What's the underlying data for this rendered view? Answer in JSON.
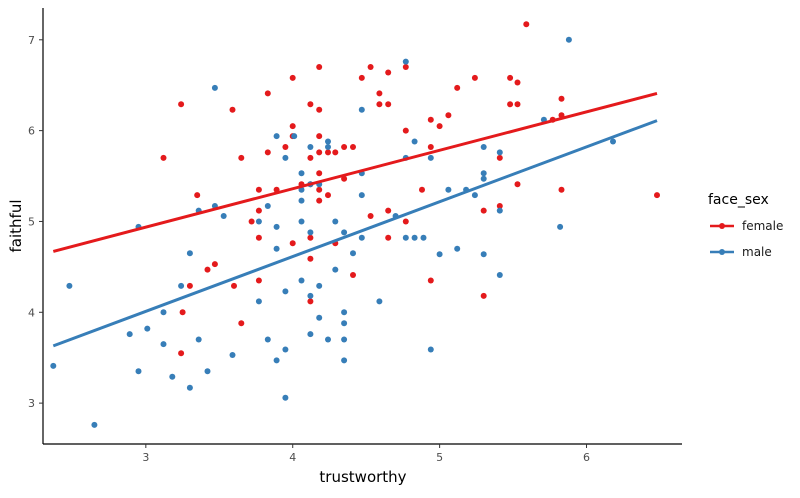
{
  "chart_data": {
    "type": "scatter",
    "xlabel": "trustworthy",
    "ylabel": "faithful",
    "xlim": [
      2.3,
      6.65
    ],
    "ylim": [
      2.55,
      7.35
    ],
    "x_ticks": [
      "3",
      "4",
      "5",
      "6"
    ],
    "y_ticks": [
      "3",
      "4",
      "5",
      "6",
      "7"
    ],
    "grid": false,
    "legend": {
      "title": "face_sex",
      "position": "right"
    },
    "series": [
      {
        "name": "female",
        "color": "#e41a1c",
        "trend_line": {
          "x": [
            2.37,
            6.48
          ],
          "y": [
            4.67,
            6.41
          ]
        },
        "points": [
          [
            3.12,
            5.7
          ],
          [
            3.24,
            6.29
          ],
          [
            3.35,
            5.29
          ],
          [
            3.42,
            4.47
          ],
          [
            3.47,
            4.53
          ],
          [
            3.3,
            4.29
          ],
          [
            3.25,
            4.0
          ],
          [
            3.24,
            3.55
          ],
          [
            3.59,
            6.23
          ],
          [
            3.6,
            4.29
          ],
          [
            3.65,
            5.7
          ],
          [
            3.65,
            3.88
          ],
          [
            3.72,
            5.0
          ],
          [
            3.77,
            5.35
          ],
          [
            3.77,
            5.12
          ],
          [
            3.77,
            4.82
          ],
          [
            3.77,
            4.35
          ],
          [
            3.83,
            6.41
          ],
          [
            3.83,
            5.76
          ],
          [
            3.89,
            5.35
          ],
          [
            3.95,
            5.82
          ],
          [
            4.0,
            6.58
          ],
          [
            4.0,
            6.05
          ],
          [
            4.0,
            5.94
          ],
          [
            4.0,
            4.76
          ],
          [
            4.06,
            5.41
          ],
          [
            4.12,
            6.29
          ],
          [
            4.12,
            5.7
          ],
          [
            4.12,
            5.41
          ],
          [
            4.12,
            4.82
          ],
          [
            4.12,
            4.59
          ],
          [
            4.12,
            4.12
          ],
          [
            4.18,
            6.7
          ],
          [
            4.18,
            6.23
          ],
          [
            4.18,
            5.94
          ],
          [
            4.18,
            5.76
          ],
          [
            4.18,
            5.53
          ],
          [
            4.18,
            5.35
          ],
          [
            4.18,
            5.23
          ],
          [
            4.24,
            5.76
          ],
          [
            4.24,
            5.29
          ],
          [
            4.29,
            5.76
          ],
          [
            4.29,
            4.76
          ],
          [
            4.35,
            5.82
          ],
          [
            4.35,
            5.47
          ],
          [
            4.41,
            5.82
          ],
          [
            4.41,
            4.41
          ],
          [
            4.47,
            6.58
          ],
          [
            4.53,
            6.7
          ],
          [
            4.53,
            5.06
          ],
          [
            4.59,
            6.41
          ],
          [
            4.59,
            6.29
          ],
          [
            4.65,
            6.64
          ],
          [
            4.65,
            6.29
          ],
          [
            4.65,
            5.12
          ],
          [
            4.65,
            4.82
          ],
          [
            4.77,
            6.7
          ],
          [
            4.77,
            6.0
          ],
          [
            4.77,
            5.0
          ],
          [
            4.88,
            5.35
          ],
          [
            4.94,
            6.12
          ],
          [
            4.94,
            5.82
          ],
          [
            4.94,
            4.35
          ],
          [
            5.0,
            6.05
          ],
          [
            5.06,
            6.17
          ],
          [
            5.12,
            6.47
          ],
          [
            5.24,
            6.58
          ],
          [
            5.3,
            5.12
          ],
          [
            5.3,
            4.18
          ],
          [
            5.41,
            5.7
          ],
          [
            5.41,
            5.17
          ],
          [
            5.48,
            6.58
          ],
          [
            5.48,
            6.29
          ],
          [
            5.53,
            6.53
          ],
          [
            5.53,
            6.29
          ],
          [
            5.53,
            5.41
          ],
          [
            5.59,
            7.17
          ],
          [
            5.77,
            6.12
          ],
          [
            5.83,
            6.35
          ],
          [
            5.83,
            6.17
          ],
          [
            5.83,
            5.35
          ],
          [
            6.48,
            5.29
          ]
        ]
      },
      {
        "name": "male",
        "color": "#377eb8",
        "trend_line": {
          "x": [
            2.37,
            6.48
          ],
          "y": [
            3.63,
            6.11
          ]
        },
        "points": [
          [
            2.37,
            3.41
          ],
          [
            2.48,
            4.29
          ],
          [
            2.65,
            2.76
          ],
          [
            2.89,
            3.76
          ],
          [
            2.95,
            4.94
          ],
          [
            2.95,
            3.35
          ],
          [
            3.01,
            3.82
          ],
          [
            3.12,
            4.0
          ],
          [
            3.12,
            3.65
          ],
          [
            3.18,
            3.29
          ],
          [
            3.24,
            4.29
          ],
          [
            3.3,
            4.65
          ],
          [
            3.3,
            3.17
          ],
          [
            3.36,
            5.12
          ],
          [
            3.36,
            3.7
          ],
          [
            3.42,
            3.35
          ],
          [
            3.47,
            6.47
          ],
          [
            3.47,
            5.17
          ],
          [
            3.53,
            5.06
          ],
          [
            3.59,
            3.53
          ],
          [
            3.77,
            5.0
          ],
          [
            3.77,
            4.12
          ],
          [
            3.83,
            5.17
          ],
          [
            3.83,
            3.7
          ],
          [
            3.89,
            5.94
          ],
          [
            3.89,
            4.94
          ],
          [
            3.89,
            4.7
          ],
          [
            3.89,
            3.47
          ],
          [
            3.95,
            5.7
          ],
          [
            3.95,
            4.23
          ],
          [
            3.95,
            3.59
          ],
          [
            3.95,
            3.06
          ],
          [
            4.01,
            5.94
          ],
          [
            4.06,
            5.53
          ],
          [
            4.06,
            5.35
          ],
          [
            4.06,
            5.23
          ],
          [
            4.06,
            5.0
          ],
          [
            4.06,
            4.35
          ],
          [
            4.12,
            5.82
          ],
          [
            4.12,
            5.41
          ],
          [
            4.12,
            4.88
          ],
          [
            4.12,
            4.18
          ],
          [
            4.12,
            3.76
          ],
          [
            4.18,
            5.41
          ],
          [
            4.18,
            4.29
          ],
          [
            4.18,
            3.94
          ],
          [
            4.24,
            5.88
          ],
          [
            4.24,
            5.82
          ],
          [
            4.24,
            3.7
          ],
          [
            4.29,
            5.0
          ],
          [
            4.29,
            4.47
          ],
          [
            4.35,
            4.88
          ],
          [
            4.35,
            4.0
          ],
          [
            4.35,
            3.88
          ],
          [
            4.35,
            3.7
          ],
          [
            4.35,
            3.47
          ],
          [
            4.41,
            4.65
          ],
          [
            4.47,
            6.23
          ],
          [
            4.47,
            5.53
          ],
          [
            4.47,
            5.29
          ],
          [
            4.47,
            4.82
          ],
          [
            4.59,
            4.12
          ],
          [
            4.7,
            5.06
          ],
          [
            4.77,
            6.76
          ],
          [
            4.77,
            5.7
          ],
          [
            4.77,
            4.82
          ],
          [
            4.83,
            5.88
          ],
          [
            4.83,
            4.82
          ],
          [
            4.89,
            4.82
          ],
          [
            4.94,
            5.7
          ],
          [
            4.94,
            3.59
          ],
          [
            5.0,
            4.64
          ],
          [
            5.06,
            5.35
          ],
          [
            5.12,
            4.7
          ],
          [
            5.18,
            5.35
          ],
          [
            5.24,
            5.29
          ],
          [
            5.3,
            5.82
          ],
          [
            5.3,
            5.53
          ],
          [
            5.3,
            5.47
          ],
          [
            5.3,
            4.64
          ],
          [
            5.41,
            5.76
          ],
          [
            5.41,
            5.12
          ],
          [
            5.41,
            4.41
          ],
          [
            5.71,
            6.12
          ],
          [
            5.82,
            4.94
          ],
          [
            5.88,
            7.0
          ],
          [
            6.18,
            5.88
          ]
        ]
      }
    ]
  }
}
